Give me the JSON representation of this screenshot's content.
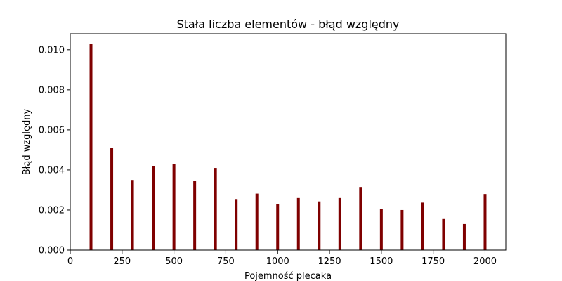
{
  "chart_data": {
    "type": "bar",
    "title": "Stała liczba elementów - błąd względny",
    "xlabel": "Pojemność plecaka",
    "ylabel": "Błąd względny",
    "x": [
      100,
      200,
      300,
      400,
      500,
      600,
      700,
      800,
      900,
      1000,
      1100,
      1200,
      1300,
      1400,
      1500,
      1600,
      1700,
      1800,
      1900,
      2000
    ],
    "values": [
      0.0103,
      0.0051,
      0.0035,
      0.0042,
      0.0043,
      0.00345,
      0.0041,
      0.00255,
      0.00282,
      0.0023,
      0.0026,
      0.00243,
      0.0026,
      0.00315,
      0.00205,
      0.002,
      0.00237,
      0.00155,
      0.0013,
      0.0028
    ],
    "xlim": [
      0,
      2100
    ],
    "ylim": [
      0,
      0.0108
    ],
    "xticks": [
      0,
      250,
      500,
      750,
      1000,
      1250,
      1500,
      1750,
      2000
    ],
    "xtick_labels": [
      "0",
      "250",
      "500",
      "750",
      "1000",
      "1250",
      "1500",
      "1750",
      "2000"
    ],
    "yticks": [
      0,
      0.002,
      0.004,
      0.006,
      0.008,
      0.01
    ],
    "ytick_labels": [
      "0.000",
      "0.002",
      "0.004",
      "0.006",
      "0.008",
      "0.010"
    ],
    "bar_color": "#7f0000",
    "grid": false
  }
}
